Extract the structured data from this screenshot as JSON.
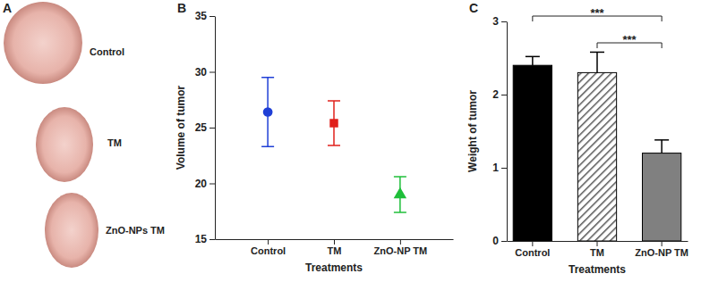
{
  "panel_a": {
    "label": "A",
    "labels": [
      "Control",
      "TM",
      "ZnO-NPs TM"
    ]
  },
  "chart_data": [
    {
      "type": "scatter",
      "title": "B",
      "x_label": "Treatments",
      "y_label": "Volume of tumor",
      "categories": [
        "Control",
        "TM",
        "ZnO-NP TM"
      ],
      "series": [
        {
          "color": "#1f3fd6",
          "marker": "circle",
          "values": [
            26.4,
            null,
            null
          ],
          "error": [
            3.1,
            null,
            null
          ]
        },
        {
          "color": "#e0201b",
          "marker": "square",
          "values": [
            null,
            25.4,
            null
          ],
          "error": [
            null,
            2.0,
            null
          ]
        },
        {
          "color": "#1fbf3a",
          "marker": "triangle",
          "values": [
            null,
            null,
            19.0
          ],
          "error": [
            null,
            null,
            1.6
          ]
        }
      ],
      "ylim": [
        15,
        35
      ],
      "yticks": [
        15,
        20,
        25,
        30,
        35
      ]
    },
    {
      "type": "bar",
      "title": "C",
      "x_label": "Treatments",
      "y_label": "Weight of tumor",
      "categories": [
        "Control",
        "TM",
        "ZnO-NP TM"
      ],
      "values": [
        2.4,
        2.3,
        1.2
      ],
      "error": [
        0.12,
        0.28,
        0.18
      ],
      "colors": [
        "#000000",
        "#ffffff",
        "#808080"
      ],
      "ylim": [
        0,
        3
      ],
      "yticks": [
        0,
        1,
        2,
        3
      ],
      "annotations": [
        {
          "text": "***",
          "from": 0,
          "to": 2
        },
        {
          "text": "***",
          "from": 1,
          "to": 2
        }
      ]
    }
  ]
}
